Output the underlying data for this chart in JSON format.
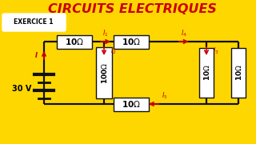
{
  "bg_color": "#FFD700",
  "title": "CIRCUITS ELECTRIQUES",
  "title_color": "#CC0000",
  "exercice_label": "EXERCICE 1",
  "voltage": "30 V",
  "arrow_color": "#CC0000",
  "wire_color": "#111111",
  "resistor_box_color": "#ffffff",
  "resistor_border_color": "#111111",
  "lw_wire": 1.6
}
